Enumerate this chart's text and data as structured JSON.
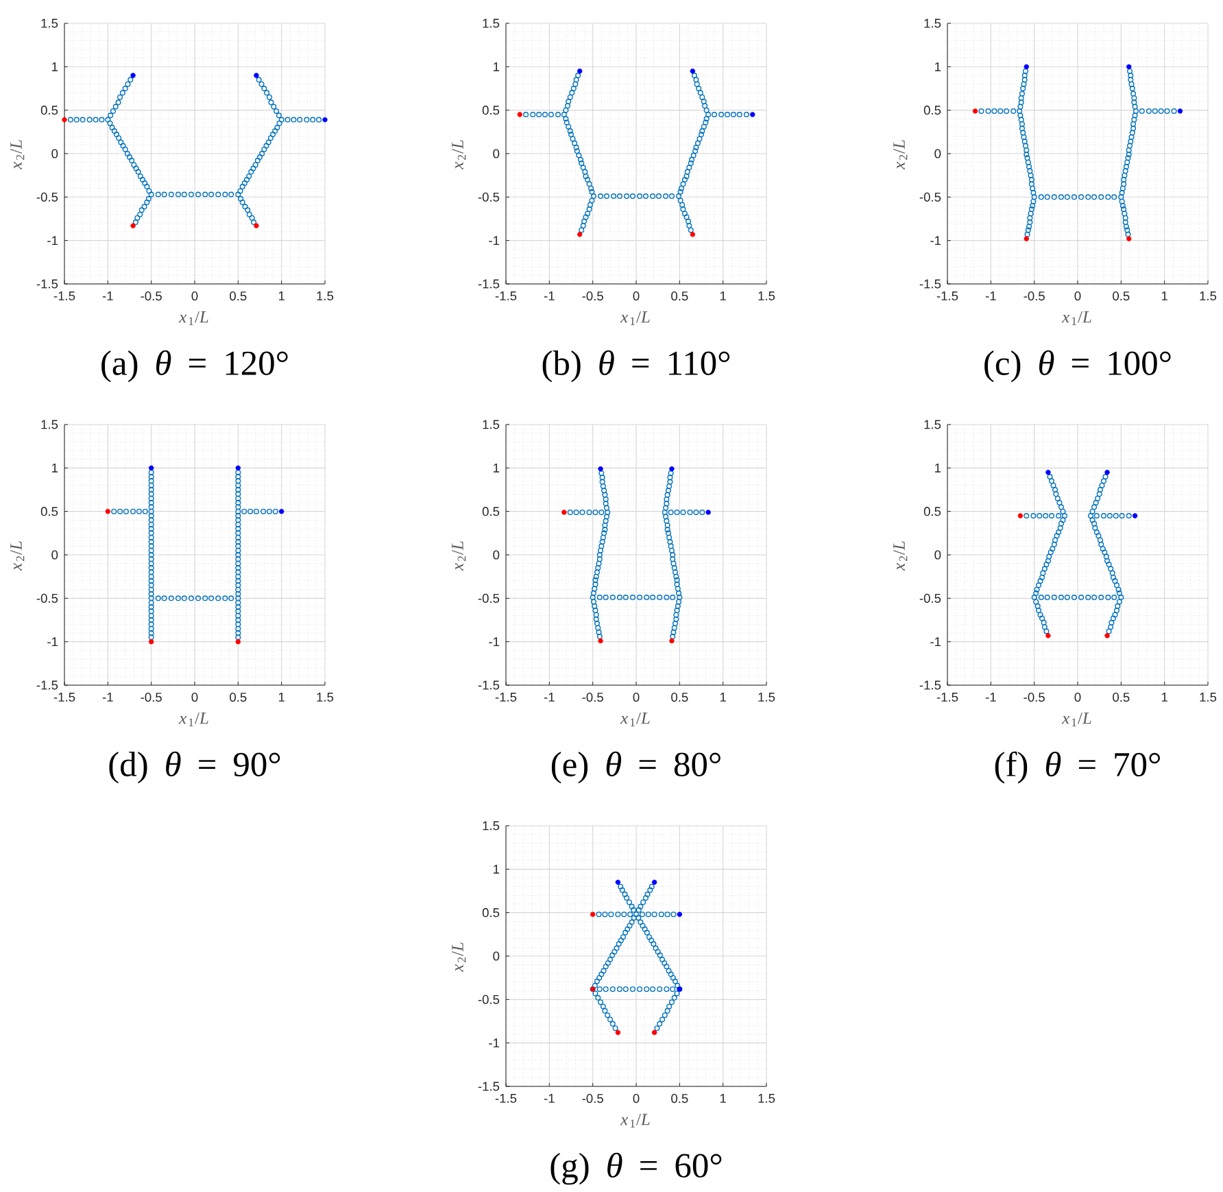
{
  "chart_data": [
    {
      "type": "scatter",
      "title": "(a) *θ* = 120°",
      "xlabel": "*x*$_{1}$/*L*",
      "ylabel": "*x*$_{2}$/*L*",
      "xlim": [
        -1.5,
        1.5
      ],
      "ylim": [
        -1.5,
        1.5
      ],
      "xticks": [
        -1.5,
        -1,
        -0.5,
        0,
        0.5,
        1,
        1.5
      ],
      "yticks": [
        -1.5,
        -1,
        -0.5,
        0,
        0.5,
        1,
        1.5
      ],
      "grid": true,
      "marker": "circle",
      "series": [
        {
          "color": "#0072bd",
          "x": [
            -0.5,
            -0.525,
            -0.55,
            -0.575,
            -0.6,
            -0.625,
            -0.65,
            -0.675,
            -0.7,
            -0.725,
            -0.75,
            -0.775,
            -0.8,
            -0.825,
            -0.85,
            -0.875,
            -0.9,
            -0.925,
            -0.95,
            -0.975,
            -1,
            -0.97,
            -0.94,
            -0.91,
            -0.88,
            -0.86,
            -0.83,
            -0.8,
            -0.77,
            -0.74,
            -0.53,
            -0.55,
            -0.58,
            -0.61,
            -0.63,
            -0.66,
            -0.68,
            -1.07,
            -1.14,
            -1.21,
            -1.29,
            -1.36,
            -1.43,
            0.5,
            0.525,
            0.55,
            0.575,
            0.6,
            0.625,
            0.65,
            0.675,
            0.7,
            0.725,
            0.75,
            0.775,
            0.8,
            0.825,
            0.85,
            0.875,
            0.9,
            0.925,
            0.95,
            0.975,
            1,
            0.97,
            0.94,
            0.91,
            0.88,
            0.86,
            0.83,
            0.8,
            0.77,
            0.74,
            0.53,
            0.55,
            0.58,
            0.61,
            0.63,
            0.66,
            0.68,
            1.07,
            1.14,
            1.21,
            1.29,
            1.36,
            1.43,
            -0.42,
            -0.35,
            -0.27,
            -0.19,
            -0.12,
            -0.04,
            0.04,
            0.12,
            0.19,
            0.27,
            0.35,
            0.42
          ],
          "values": [
            -0.47,
            -0.43,
            -0.38,
            -0.34,
            -0.3,
            -0.26,
            -0.21,
            -0.17,
            -0.13,
            -0.08,
            -0.04,
            0,
            0.05,
            0.09,
            0.13,
            0.18,
            0.22,
            0.26,
            0.3,
            0.35,
            0.39,
            0.44,
            0.49,
            0.54,
            0.59,
            0.65,
            0.7,
            0.75,
            0.8,
            0.85,
            -0.52,
            -0.56,
            -0.61,
            -0.65,
            -0.7,
            -0.74,
            -0.79,
            0.39,
            0.39,
            0.39,
            0.39,
            0.39,
            0.39,
            -0.47,
            -0.43,
            -0.38,
            -0.34,
            -0.3,
            -0.26,
            -0.21,
            -0.17,
            -0.13,
            -0.08,
            -0.04,
            0,
            0.05,
            0.09,
            0.13,
            0.18,
            0.22,
            0.26,
            0.3,
            0.35,
            0.39,
            0.44,
            0.49,
            0.54,
            0.59,
            0.65,
            0.7,
            0.75,
            0.8,
            0.85,
            -0.52,
            -0.56,
            -0.61,
            -0.65,
            -0.7,
            -0.74,
            -0.79,
            0.39,
            0.39,
            0.39,
            0.39,
            0.39,
            0.39,
            -0.47,
            -0.47,
            -0.47,
            -0.47,
            -0.47,
            -0.47,
            -0.47,
            -0.47,
            -0.47,
            -0.47,
            -0.47,
            -0.47
          ]
        },
        {
          "color": "#0000ff",
          "x": [
            -0.71,
            0.71,
            1.5
          ],
          "values": [
            0.9,
            0.9,
            0.39
          ]
        },
        {
          "color": "#ff0000",
          "x": [
            -1.5,
            -0.71,
            0.71
          ],
          "values": [
            0.39,
            -0.83,
            -0.83
          ]
        }
      ]
    },
    {
      "type": "scatter",
      "title": "(b) *θ* = 110°",
      "xlabel": "*x*$_{1}$/*L*",
      "ylabel": "*x*$_{2}$/*L*",
      "xlim": [
        -1.5,
        1.5
      ],
      "ylim": [
        -1.5,
        1.5
      ],
      "xticks": [
        -1.5,
        -1,
        -0.5,
        0,
        0.5,
        1,
        1.5
      ],
      "yticks": [
        -1.5,
        -1,
        -0.5,
        0,
        0.5,
        1,
        1.5
      ],
      "grid": true,
      "marker": "circle",
      "series": [
        {
          "color": "#0072bd",
          "x": [
            -0.49,
            -0.51,
            -0.52,
            -0.54,
            -0.56,
            -0.58,
            -0.59,
            -0.61,
            -0.63,
            -0.64,
            -0.66,
            -0.68,
            -0.69,
            -0.71,
            -0.73,
            -0.75,
            -0.76,
            -0.78,
            -0.8,
            -0.81,
            -0.83,
            -0.81,
            -0.79,
            -0.78,
            -0.76,
            -0.74,
            -0.72,
            -0.7,
            -0.69,
            -0.67,
            -0.51,
            -0.53,
            -0.54,
            -0.56,
            -0.58,
            -0.6,
            -0.61,
            -0.63,
            -0.9,
            -0.98,
            -1.05,
            -1.12,
            -1.19,
            -1.27,
            0.49,
            0.51,
            0.52,
            0.54,
            0.56,
            0.58,
            0.59,
            0.61,
            0.63,
            0.64,
            0.66,
            0.68,
            0.69,
            0.71,
            0.73,
            0.75,
            0.76,
            0.78,
            0.8,
            0.81,
            0.83,
            0.81,
            0.79,
            0.78,
            0.76,
            0.74,
            0.72,
            0.7,
            0.69,
            0.67,
            0.51,
            0.53,
            0.54,
            0.56,
            0.58,
            0.6,
            0.61,
            0.63,
            0.9,
            0.98,
            1.05,
            1.12,
            1.19,
            1.27,
            -0.41,
            -0.34,
            -0.26,
            -0.19,
            -0.11,
            -0.04,
            0.04,
            0.11,
            0.19,
            0.26,
            0.34,
            0.41
          ],
          "values": [
            -0.49,
            -0.44,
            -0.4,
            -0.35,
            -0.3,
            -0.26,
            -0.21,
            -0.16,
            -0.11,
            -0.07,
            -0.02,
            0.03,
            0.07,
            0.12,
            0.17,
            0.22,
            0.26,
            0.31,
            0.36,
            0.4,
            0.45,
            0.5,
            0.55,
            0.6,
            0.65,
            0.7,
            0.75,
            0.8,
            0.85,
            0.9,
            -0.54,
            -0.59,
            -0.64,
            -0.69,
            -0.73,
            -0.78,
            -0.83,
            -0.88,
            0.45,
            0.45,
            0.45,
            0.45,
            0.45,
            0.45,
            -0.49,
            -0.44,
            -0.4,
            -0.35,
            -0.3,
            -0.26,
            -0.21,
            -0.16,
            -0.11,
            -0.07,
            -0.02,
            0.03,
            0.07,
            0.12,
            0.17,
            0.22,
            0.26,
            0.31,
            0.36,
            0.4,
            0.45,
            0.5,
            0.55,
            0.6,
            0.65,
            0.7,
            0.75,
            0.8,
            0.85,
            0.9,
            -0.54,
            -0.59,
            -0.64,
            -0.69,
            -0.73,
            -0.78,
            -0.83,
            -0.88,
            0.45,
            0.45,
            0.45,
            0.45,
            0.45,
            0.45,
            -0.49,
            -0.49,
            -0.49,
            -0.49,
            -0.49,
            -0.49,
            -0.49,
            -0.49,
            -0.49,
            -0.49,
            -0.49,
            -0.49
          ]
        },
        {
          "color": "#0000ff",
          "x": [
            -0.65,
            0.65,
            1.34
          ],
          "values": [
            0.95,
            0.95,
            0.45
          ]
        },
        {
          "color": "#ff0000",
          "x": [
            -1.34,
            -0.65,
            0.65
          ],
          "values": [
            0.45,
            -0.93,
            -0.93
          ]
        }
      ]
    },
    {
      "type": "scatter",
      "title": "(c) *θ* = 100°",
      "xlabel": "*x*$_{1}$/*L*",
      "ylabel": "*x*$_{2}$/*L*",
      "xlim": [
        -1.5,
        1.5
      ],
      "ylim": [
        -1.5,
        1.5
      ],
      "xticks": [
        -1.5,
        -1,
        -0.5,
        0,
        0.5,
        1,
        1.5
      ],
      "yticks": [
        -1.5,
        -1,
        -0.5,
        0,
        0.5,
        1,
        1.5
      ],
      "grid": true,
      "marker": "circle",
      "series": [
        {
          "color": "#0072bd",
          "x": [
            -0.5,
            -0.51,
            -0.52,
            -0.53,
            -0.53,
            -0.54,
            -0.55,
            -0.56,
            -0.57,
            -0.58,
            -0.59,
            -0.59,
            -0.6,
            -0.61,
            -0.62,
            -0.63,
            -0.64,
            -0.64,
            -0.65,
            -0.66,
            -0.67,
            -0.66,
            -0.65,
            -0.65,
            -0.64,
            -0.63,
            -0.62,
            -0.61,
            -0.61,
            -0.6,
            -0.51,
            -0.52,
            -0.53,
            -0.54,
            -0.55,
            -0.55,
            -0.56,
            -0.57,
            -0.58,
            -0.74,
            -0.82,
            -0.89,
            -0.96,
            -1.03,
            -1.11,
            0.5,
            0.51,
            0.52,
            0.53,
            0.53,
            0.54,
            0.55,
            0.56,
            0.57,
            0.58,
            0.59,
            0.59,
            0.6,
            0.61,
            0.62,
            0.63,
            0.64,
            0.64,
            0.65,
            0.66,
            0.67,
            0.66,
            0.65,
            0.65,
            0.64,
            0.63,
            0.62,
            0.61,
            0.61,
            0.6,
            0.51,
            0.52,
            0.53,
            0.54,
            0.55,
            0.55,
            0.56,
            0.57,
            0.58,
            0.74,
            0.82,
            0.89,
            0.96,
            1.03,
            1.11,
            -0.42,
            -0.35,
            -0.27,
            -0.19,
            -0.12,
            -0.04,
            0.04,
            0.12,
            0.19,
            0.27,
            0.35,
            0.42
          ],
          "values": [
            -0.5,
            -0.45,
            -0.4,
            -0.35,
            -0.3,
            -0.25,
            -0.2,
            -0.15,
            -0.1,
            -0.05,
            -0.01,
            0.04,
            0.09,
            0.14,
            0.19,
            0.24,
            0.29,
            0.34,
            0.39,
            0.44,
            0.49,
            0.54,
            0.59,
            0.64,
            0.69,
            0.75,
            0.8,
            0.85,
            0.9,
            0.95,
            -0.55,
            -0.6,
            -0.64,
            -0.69,
            -0.74,
            -0.79,
            -0.84,
            -0.88,
            -0.93,
            0.49,
            0.49,
            0.49,
            0.49,
            0.49,
            0.49,
            -0.5,
            -0.45,
            -0.4,
            -0.35,
            -0.3,
            -0.25,
            -0.2,
            -0.15,
            -0.1,
            -0.05,
            -0.01,
            0.04,
            0.09,
            0.14,
            0.19,
            0.24,
            0.29,
            0.34,
            0.39,
            0.44,
            0.49,
            0.54,
            0.59,
            0.64,
            0.69,
            0.75,
            0.8,
            0.85,
            0.9,
            0.95,
            -0.55,
            -0.6,
            -0.64,
            -0.69,
            -0.74,
            -0.79,
            -0.84,
            -0.88,
            -0.93,
            0.49,
            0.49,
            0.49,
            0.49,
            0.49,
            0.49,
            -0.5,
            -0.5,
            -0.5,
            -0.5,
            -0.5,
            -0.5,
            -0.5,
            -0.5,
            -0.5,
            -0.5,
            -0.5,
            -0.5
          ]
        },
        {
          "color": "#0000ff",
          "x": [
            -0.59,
            0.59,
            1.18
          ],
          "values": [
            1,
            1,
            0.49
          ]
        },
        {
          "color": "#ff0000",
          "x": [
            -1.18,
            -0.59,
            0.59
          ],
          "values": [
            0.49,
            -0.98,
            -0.98
          ]
        }
      ]
    },
    {
      "type": "scatter",
      "title": "(d) *θ* = 90°",
      "xlabel": "*x*$_{1}$/*L*",
      "ylabel": "*x*$_{2}$/*L*",
      "xlim": [
        -1.5,
        1.5
      ],
      "ylim": [
        -1.5,
        1.5
      ],
      "xticks": [
        -1.5,
        -1,
        -0.5,
        0,
        0.5,
        1,
        1.5
      ],
      "yticks": [
        -1.5,
        -1,
        -0.5,
        0,
        0.5,
        1,
        1.5
      ],
      "grid": true,
      "marker": "circle",
      "series": [
        {
          "color": "#0072bd",
          "x": [
            -0.5,
            -0.5,
            -0.5,
            -0.5,
            -0.5,
            -0.5,
            -0.5,
            -0.5,
            -0.5,
            -0.5,
            -0.5,
            -0.5,
            -0.5,
            -0.5,
            -0.5,
            -0.5,
            -0.5,
            -0.5,
            -0.5,
            -0.5,
            -0.5,
            -0.5,
            -0.5,
            -0.5,
            -0.5,
            -0.5,
            -0.5,
            -0.5,
            -0.5,
            -0.5,
            -0.5,
            -0.5,
            -0.5,
            -0.5,
            -0.5,
            -0.5,
            -0.5,
            -0.5,
            -0.5,
            -0.57,
            -0.64,
            -0.71,
            -0.79,
            -0.86,
            -0.93,
            0.5,
            0.5,
            0.5,
            0.5,
            0.5,
            0.5,
            0.5,
            0.5,
            0.5,
            0.5,
            0.5,
            0.5,
            0.5,
            0.5,
            0.5,
            0.5,
            0.5,
            0.5,
            0.5,
            0.5,
            0.5,
            0.5,
            0.5,
            0.5,
            0.5,
            0.5,
            0.5,
            0.5,
            0.5,
            0.5,
            0.5,
            0.5,
            0.5,
            0.5,
            0.5,
            0.5,
            0.5,
            0.5,
            0.5,
            0.57,
            0.64,
            0.71,
            0.79,
            0.86,
            0.93,
            -0.42,
            -0.35,
            -0.27,
            -0.19,
            -0.12,
            -0.04,
            0.04,
            0.12,
            0.19,
            0.27,
            0.35,
            0.42
          ],
          "values": [
            -0.5,
            -0.45,
            -0.4,
            -0.35,
            -0.3,
            -0.25,
            -0.2,
            -0.15,
            -0.1,
            -0.05,
            0,
            0.05,
            0.1,
            0.15,
            0.2,
            0.25,
            0.3,
            0.35,
            0.4,
            0.45,
            0.5,
            0.55,
            0.6,
            0.65,
            0.7,
            0.75,
            0.8,
            0.85,
            0.9,
            0.95,
            -0.55,
            -0.6,
            -0.65,
            -0.7,
            -0.75,
            -0.8,
            -0.85,
            -0.9,
            -0.95,
            0.5,
            0.5,
            0.5,
            0.5,
            0.5,
            0.5,
            -0.5,
            -0.45,
            -0.4,
            -0.35,
            -0.3,
            -0.25,
            -0.2,
            -0.15,
            -0.1,
            -0.05,
            0,
            0.05,
            0.1,
            0.15,
            0.2,
            0.25,
            0.3,
            0.35,
            0.4,
            0.45,
            0.5,
            0.55,
            0.6,
            0.65,
            0.7,
            0.75,
            0.8,
            0.85,
            0.9,
            0.95,
            -0.55,
            -0.6,
            -0.65,
            -0.7,
            -0.75,
            -0.8,
            -0.85,
            -0.9,
            -0.95,
            0.5,
            0.5,
            0.5,
            0.5,
            0.5,
            0.5,
            -0.5,
            -0.5,
            -0.5,
            -0.5,
            -0.5,
            -0.5,
            -0.5,
            -0.5,
            -0.5,
            -0.5,
            -0.5,
            -0.5
          ]
        },
        {
          "color": "#0000ff",
          "x": [
            -0.5,
            0.5,
            1
          ],
          "values": [
            1,
            1,
            0.5
          ]
        },
        {
          "color": "#ff0000",
          "x": [
            -1,
            -0.5,
            0.5
          ],
          "values": [
            0.5,
            -1,
            -1
          ]
        }
      ]
    },
    {
      "type": "scatter",
      "title": "(e) *θ* = 80°",
      "xlabel": "*x*$_{1}$/*L*",
      "ylabel": "*x*$_{2}$/*L*",
      "xlim": [
        -1.5,
        1.5
      ],
      "ylim": [
        -1.5,
        1.5
      ],
      "xticks": [
        -1.5,
        -1,
        -0.5,
        0,
        0.5,
        1,
        1.5
      ],
      "yticks": [
        -1.5,
        -1,
        -0.5,
        0,
        0.5,
        1,
        1.5
      ],
      "grid": true,
      "marker": "circle",
      "series": [
        {
          "color": "#0072bd",
          "x": [
            -0.5,
            -0.49,
            -0.48,
            -0.47,
            -0.47,
            -0.46,
            -0.45,
            -0.44,
            -0.43,
            -0.42,
            -0.42,
            -0.41,
            -0.4,
            -0.39,
            -0.38,
            -0.37,
            -0.36,
            -0.36,
            -0.35,
            -0.34,
            -0.33,
            -0.34,
            -0.35,
            -0.35,
            -0.36,
            -0.37,
            -0.38,
            -0.39,
            -0.39,
            -0.4,
            -0.49,
            -0.48,
            -0.47,
            -0.46,
            -0.46,
            -0.45,
            -0.44,
            -0.43,
            -0.42,
            -0.4,
            -0.47,
            -0.54,
            -0.62,
            -0.69,
            -0.76,
            0.5,
            0.49,
            0.48,
            0.47,
            0.47,
            0.46,
            0.45,
            0.44,
            0.43,
            0.42,
            0.42,
            0.41,
            0.4,
            0.39,
            0.38,
            0.37,
            0.36,
            0.36,
            0.35,
            0.34,
            0.33,
            0.34,
            0.35,
            0.35,
            0.36,
            0.37,
            0.38,
            0.39,
            0.39,
            0.4,
            0.49,
            0.48,
            0.47,
            0.46,
            0.46,
            0.45,
            0.44,
            0.43,
            0.42,
            0.4,
            0.47,
            0.54,
            0.62,
            0.69,
            0.76,
            -0.42,
            -0.35,
            -0.27,
            -0.19,
            -0.12,
            -0.04,
            0.04,
            0.12,
            0.19,
            0.27,
            0.35,
            0.42
          ],
          "values": [
            -0.49,
            -0.44,
            -0.39,
            -0.34,
            -0.29,
            -0.25,
            -0.2,
            -0.15,
            -0.1,
            -0.05,
            0,
            0.05,
            0.1,
            0.15,
            0.2,
            0.25,
            0.29,
            0.34,
            0.39,
            0.44,
            0.49,
            0.54,
            0.59,
            0.64,
            0.69,
            0.74,
            0.79,
            0.84,
            0.89,
            0.94,
            -0.54,
            -0.59,
            -0.64,
            -0.69,
            -0.74,
            -0.79,
            -0.84,
            -0.89,
            -0.94,
            0.49,
            0.49,
            0.49,
            0.49,
            0.49,
            0.49,
            -0.49,
            -0.44,
            -0.39,
            -0.34,
            -0.29,
            -0.25,
            -0.2,
            -0.15,
            -0.1,
            -0.05,
            0,
            0.05,
            0.1,
            0.15,
            0.2,
            0.25,
            0.29,
            0.34,
            0.39,
            0.44,
            0.49,
            0.54,
            0.59,
            0.64,
            0.69,
            0.74,
            0.79,
            0.84,
            0.89,
            0.94,
            -0.54,
            -0.59,
            -0.64,
            -0.69,
            -0.74,
            -0.79,
            -0.84,
            -0.89,
            -0.94,
            0.49,
            0.49,
            0.49,
            0.49,
            0.49,
            0.49,
            -0.49,
            -0.49,
            -0.49,
            -0.49,
            -0.49,
            -0.49,
            -0.49,
            -0.49,
            -0.49,
            -0.49,
            -0.49,
            -0.49
          ]
        },
        {
          "color": "#0000ff",
          "x": [
            -0.41,
            0.41,
            0.83
          ],
          "values": [
            0.99,
            0.99,
            0.49
          ]
        },
        {
          "color": "#ff0000",
          "x": [
            -0.83,
            -0.41,
            0.41
          ],
          "values": [
            0.49,
            -0.99,
            -0.99
          ]
        }
      ]
    },
    {
      "type": "scatter",
      "title": "(f) *θ* = 70°",
      "xlabel": "*x*$_{1}$/*L*",
      "ylabel": "*x*$_{2}$/*L*",
      "xlim": [
        -1.5,
        1.5
      ],
      "ylim": [
        -1.5,
        1.5
      ],
      "xticks": [
        -1.5,
        -1,
        -0.5,
        0,
        0.5,
        1,
        1.5
      ],
      "yticks": [
        -1.5,
        -1,
        -0.5,
        0,
        0.5,
        1,
        1.5
      ],
      "grid": true,
      "marker": "circle",
      "series": [
        {
          "color": "#0072bd",
          "x": [
            -0.5,
            -0.48,
            -0.47,
            -0.45,
            -0.43,
            -0.41,
            -0.4,
            -0.38,
            -0.36,
            -0.34,
            -0.33,
            -0.31,
            -0.29,
            -0.27,
            -0.26,
            -0.24,
            -0.22,
            -0.2,
            -0.19,
            -0.17,
            -0.15,
            -0.17,
            -0.19,
            -0.21,
            -0.23,
            -0.25,
            -0.26,
            -0.28,
            -0.3,
            -0.32,
            -0.48,
            -0.46,
            -0.45,
            -0.43,
            -0.41,
            -0.39,
            -0.38,
            -0.36,
            -0.22,
            -0.3,
            -0.37,
            -0.44,
            -0.51,
            -0.59,
            0.5,
            0.48,
            0.47,
            0.45,
            0.43,
            0.41,
            0.4,
            0.38,
            0.36,
            0.34,
            0.33,
            0.31,
            0.29,
            0.27,
            0.26,
            0.24,
            0.22,
            0.2,
            0.19,
            0.17,
            0.15,
            0.17,
            0.19,
            0.21,
            0.23,
            0.25,
            0.26,
            0.28,
            0.3,
            0.32,
            0.48,
            0.46,
            0.45,
            0.43,
            0.41,
            0.39,
            0.38,
            0.36,
            0.22,
            0.3,
            0.37,
            0.44,
            0.51,
            0.59,
            -0.42,
            -0.35,
            -0.27,
            -0.19,
            -0.12,
            -0.04,
            0.04,
            0.12,
            0.19,
            0.27,
            0.35,
            0.42
          ],
          "values": [
            -0.49,
            -0.44,
            -0.4,
            -0.35,
            -0.3,
            -0.26,
            -0.21,
            -0.16,
            -0.11,
            -0.07,
            -0.02,
            0.03,
            0.07,
            0.12,
            0.17,
            0.22,
            0.26,
            0.31,
            0.36,
            0.4,
            0.45,
            0.5,
            0.55,
            0.6,
            0.65,
            0.7,
            0.75,
            0.8,
            0.85,
            0.9,
            -0.54,
            -0.59,
            -0.64,
            -0.69,
            -0.73,
            -0.78,
            -0.83,
            -0.88,
            0.45,
            0.45,
            0.45,
            0.45,
            0.45,
            0.45,
            -0.49,
            -0.44,
            -0.4,
            -0.35,
            -0.3,
            -0.26,
            -0.21,
            -0.16,
            -0.11,
            -0.07,
            -0.02,
            0.03,
            0.07,
            0.12,
            0.17,
            0.22,
            0.26,
            0.31,
            0.36,
            0.4,
            0.45,
            0.5,
            0.55,
            0.6,
            0.65,
            0.7,
            0.75,
            0.8,
            0.85,
            0.9,
            -0.54,
            -0.59,
            -0.64,
            -0.69,
            -0.73,
            -0.78,
            -0.83,
            -0.88,
            0.45,
            0.45,
            0.45,
            0.45,
            0.45,
            0.45,
            -0.49,
            -0.49,
            -0.49,
            -0.49,
            -0.49,
            -0.49,
            -0.49,
            -0.49,
            -0.49,
            -0.49,
            -0.49,
            -0.49
          ]
        },
        {
          "color": "#0000ff",
          "x": [
            -0.34,
            0.34,
            0.66
          ],
          "values": [
            0.95,
            0.95,
            0.45
          ]
        },
        {
          "color": "#ff0000",
          "x": [
            -0.66,
            -0.34,
            0.34
          ],
          "values": [
            0.45,
            -0.93,
            -0.93
          ]
        }
      ]
    },
    {
      "type": "scatter",
      "title": "(g) *θ* = 60°",
      "xlabel": "*x*$_{1}$/*L*",
      "ylabel": "*x*$_{2}$/*L*",
      "xlim": [
        -1.5,
        1.5
      ],
      "ylim": [
        -1.5,
        1.5
      ],
      "xticks": [
        -1.5,
        -1,
        -0.5,
        0,
        0.5,
        1,
        1.5
      ],
      "yticks": [
        -1.5,
        -1,
        -0.5,
        0,
        0.5,
        1,
        1.5
      ],
      "grid": true,
      "marker": "circle",
      "series": [
        {
          "color": "#0072bd",
          "x": [
            -0.5,
            -0.475,
            -0.45,
            -0.425,
            -0.4,
            -0.375,
            -0.35,
            -0.325,
            -0.3,
            -0.275,
            -0.25,
            -0.225,
            -0.2,
            -0.175,
            -0.15,
            -0.125,
            -0.1,
            -0.075,
            -0.05,
            -0.025,
            0,
            -0.03,
            -0.05,
            -0.08,
            -0.11,
            -0.13,
            -0.16,
            -0.18,
            -0.47,
            -0.44,
            -0.41,
            -0.38,
            -0.36,
            -0.33,
            -0.3,
            -0.27,
            -0.24,
            -0.07,
            -0.14,
            -0.21,
            -0.29,
            -0.36,
            -0.43,
            0.5,
            0.475,
            0.45,
            0.425,
            0.4,
            0.375,
            0.35,
            0.325,
            0.3,
            0.275,
            0.25,
            0.225,
            0.2,
            0.175,
            0.15,
            0.125,
            0.1,
            0.075,
            0.05,
            0.025,
            0.03,
            0.05,
            0.08,
            0.11,
            0.13,
            0.16,
            0.18,
            0.47,
            0.44,
            0.41,
            0.38,
            0.36,
            0.33,
            0.3,
            0.27,
            0.24,
            0.07,
            0.14,
            0.21,
            0.29,
            0.36,
            0.43,
            -0.42,
            -0.35,
            -0.27,
            -0.19,
            -0.12,
            -0.04,
            0.04,
            0.12,
            0.19,
            0.27,
            0.35,
            0.42
          ],
          "values": [
            -0.38,
            -0.34,
            -0.29,
            -0.25,
            -0.21,
            -0.17,
            -0.12,
            -0.08,
            -0.04,
            0.01,
            0.05,
            0.09,
            0.14,
            0.18,
            0.22,
            0.27,
            0.31,
            0.35,
            0.39,
            0.44,
            0.48,
            0.53,
            0.57,
            0.62,
            0.67,
            0.71,
            0.76,
            0.8,
            -0.43,
            -0.48,
            -0.53,
            -0.58,
            -0.63,
            -0.68,
            -0.73,
            -0.78,
            -0.83,
            0.48,
            0.48,
            0.48,
            0.48,
            0.48,
            0.48,
            -0.38,
            -0.34,
            -0.29,
            -0.25,
            -0.21,
            -0.17,
            -0.12,
            -0.08,
            -0.04,
            0.01,
            0.05,
            0.09,
            0.14,
            0.18,
            0.22,
            0.27,
            0.31,
            0.35,
            0.39,
            0.44,
            0.53,
            0.57,
            0.62,
            0.67,
            0.71,
            0.76,
            0.8,
            -0.43,
            -0.48,
            -0.53,
            -0.58,
            -0.63,
            -0.68,
            -0.73,
            -0.78,
            -0.83,
            0.48,
            0.48,
            0.48,
            0.48,
            0.48,
            0.48,
            -0.38,
            -0.38,
            -0.38,
            -0.38,
            -0.38,
            -0.38,
            -0.38,
            -0.38,
            -0.38,
            -0.38,
            -0.38,
            -0.38
          ]
        },
        {
          "color": "#0000ff",
          "x": [
            -0.21,
            0.21,
            0.5,
            0.5
          ],
          "values": [
            0.85,
            0.85,
            0.48,
            -0.38
          ]
        },
        {
          "color": "#ff0000",
          "x": [
            -0.5,
            -0.5,
            -0.21,
            0.21
          ],
          "values": [
            0.48,
            -0.38,
            -0.88,
            -0.88
          ]
        }
      ]
    }
  ]
}
